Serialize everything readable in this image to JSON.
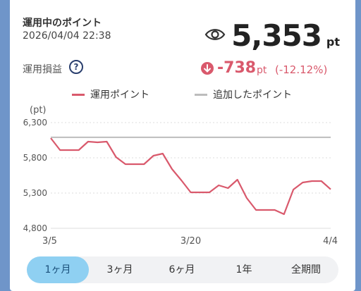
{
  "header": {
    "title": "運用中のポイント",
    "datetime": "2026/04/04 22:38",
    "points": "5,353",
    "points_unit": "pt",
    "eye_icon": "eye-icon"
  },
  "profit_loss": {
    "label": "運用損益",
    "help_symbol": "?",
    "value": "-738",
    "unit": "pt",
    "percent": "(-12.12%)",
    "color": "#d9596c"
  },
  "legend": [
    {
      "label": "運用ポイント",
      "color": "#d9596c"
    },
    {
      "label": "追加したポイント",
      "color": "#bdbdbd"
    }
  ],
  "chart_data": {
    "type": "line",
    "ylabel": "(pt)",
    "ylim": [
      4800,
      6300
    ],
    "yticks": [
      "6,300",
      "5,800",
      "5,300",
      "4,800"
    ],
    "ytick_values": [
      6300,
      5800,
      5300,
      4800
    ],
    "xticks": [
      "3/5",
      "3/20",
      "4/4"
    ],
    "xtick_positions": [
      0,
      15,
      30
    ],
    "grid": true,
    "series": [
      {
        "name": "運用ポイント",
        "color": "#d9596c",
        "x": [
          0,
          1,
          2,
          3,
          4,
          5,
          6,
          7,
          8,
          9,
          10,
          11,
          12,
          13,
          14,
          15,
          16,
          17,
          18,
          19,
          20,
          21,
          22,
          23,
          24,
          25,
          26,
          27,
          28,
          29,
          30
        ],
        "y": [
          6080,
          5910,
          5910,
          5910,
          6030,
          6020,
          6030,
          5810,
          5710,
          5710,
          5710,
          5830,
          5860,
          5640,
          5480,
          5310,
          5310,
          5310,
          5410,
          5370,
          5490,
          5230,
          5060,
          5060,
          5060,
          5000,
          5350,
          5450,
          5470,
          5470,
          5353
        ]
      },
      {
        "name": "追加したポイント",
        "color": "#bdbdbd",
        "x": [
          0,
          30
        ],
        "y": [
          6091,
          6091
        ]
      }
    ]
  },
  "tabs": [
    {
      "label": "1ヶ月",
      "active": true
    },
    {
      "label": "3ヶ月",
      "active": false
    },
    {
      "label": "6ヶ月",
      "active": false
    },
    {
      "label": "1年",
      "active": false
    },
    {
      "label": "全期間",
      "active": false
    }
  ]
}
